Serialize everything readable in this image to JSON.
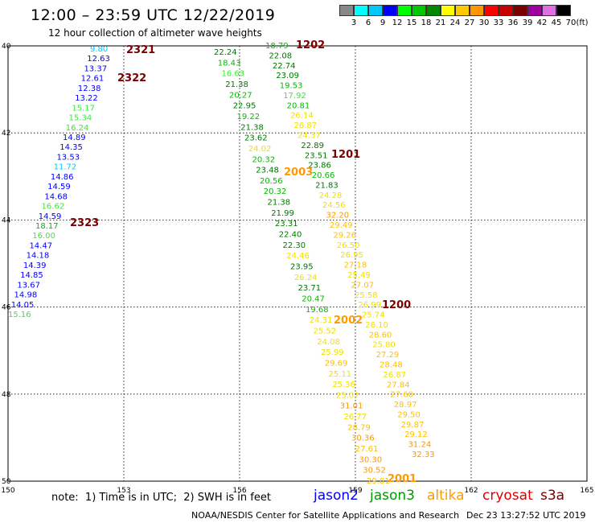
{
  "header": {
    "title": "12:00 – 23:59 UTC 12/22/2019",
    "subtitle": "12 hour collection of altimeter wave heights"
  },
  "legend": {
    "unit": "(ft)",
    "bins": [
      {
        "label": "3",
        "color": "#888888"
      },
      {
        "label": "6",
        "color": "#00ffff"
      },
      {
        "label": "9",
        "color": "#00c8ff"
      },
      {
        "label": "12",
        "color": "#0000ff"
      },
      {
        "label": "15",
        "color": "#00ff00"
      },
      {
        "label": "18",
        "color": "#00c800"
      },
      {
        "label": "21",
        "color": "#008800"
      },
      {
        "label": "24",
        "color": "#ffff00"
      },
      {
        "label": "27",
        "color": "#ffc800"
      },
      {
        "label": "30",
        "color": "#ff9600"
      },
      {
        "label": "33",
        "color": "#ff0000"
      },
      {
        "label": "36",
        "color": "#c80000"
      },
      {
        "label": "39",
        "color": "#7a0000"
      },
      {
        "label": "42",
        "color": "#a000a0"
      },
      {
        "label": "45",
        "color": "#e070e0"
      },
      {
        "label": "70",
        "color": "#000000"
      }
    ]
  },
  "map": {
    "lon_ticks": [
      "150",
      "153",
      "156",
      "159",
      "162",
      "165"
    ],
    "lat_ticks": [
      "40",
      "42",
      "44",
      "46",
      "48",
      "50"
    ],
    "lon_range": [
      150,
      165
    ],
    "lat_range": [
      40,
      50
    ]
  },
  "tracks": [
    {
      "time": "2321",
      "points": [
        "9.80",
        "12.63",
        "13.37",
        "12.61",
        "12.38",
        "13.22",
        "15.17",
        "15.34",
        "16.24",
        "14.89",
        "14.35",
        "13.53",
        "11.72",
        "14.86",
        "14.59",
        "14.68",
        "16.62",
        "14.59",
        "18.17",
        "16.00",
        "14.47",
        "14.18",
        "14.39",
        "14.85",
        "13.67",
        "14.98",
        "14.05",
        "15.16"
      ]
    },
    {
      "time": "2322"
    },
    {
      "time": "2323"
    },
    {
      "time": "1202",
      "points": [
        "18.79",
        "22.08",
        "22.74",
        "23.09",
        "19.53",
        "17.92",
        "20.81",
        "26.14",
        "26.87",
        "24.37",
        "22.89",
        "23.51",
        "23.86",
        "20.66",
        "21.83",
        "24.28",
        "24.56",
        "32.20",
        "29.49",
        "29.26",
        "26.50",
        "26.95",
        "27.18",
        "25.49",
        "27.07",
        "25.58",
        "26.99",
        "25.74",
        "26.10",
        "28.60",
        "25.80",
        "27.29",
        "28.48",
        "26.87",
        "27.84",
        "27.60",
        "28.97",
        "29.50",
        "29.87",
        "29.12",
        "31.24",
        "32.33"
      ]
    },
    {
      "time": "1201"
    },
    {
      "time": "1200"
    },
    {
      "time": "2003",
      "points": [
        "22.24",
        "18.43",
        "16.63",
        "21.38",
        "20.27",
        "22.95",
        "19.22",
        "21.38",
        "23.62",
        "24.02",
        "20.32",
        "23.48",
        "20.56",
        "20.32",
        "21.38",
        "21.99",
        "23.31",
        "22.40",
        "22.30",
        "24.46",
        "23.95",
        "26.24",
        "23.71",
        "20.47",
        "19.68",
        "24.31",
        "25.52",
        "24.08",
        "25.99",
        "29.69",
        "25.11",
        "25.36",
        "25.07",
        "31.01",
        "26.77",
        "28.79",
        "30.36",
        "27.61",
        "30.30",
        "30.52",
        "29.81"
      ]
    },
    {
      "time": "2002"
    },
    {
      "time": "2001"
    }
  ],
  "footer": {
    "note": "note:  1) Time is in UTC;  2) SWH is in feet",
    "satellites": [
      {
        "name": "jason2",
        "color": "#0000ff"
      },
      {
        "name": "jason3",
        "color": "#009900"
      },
      {
        "name": "altika",
        "color": "#ff9900"
      },
      {
        "name": "cryosat",
        "color": "#dd0000"
      },
      {
        "name": "s3a",
        "color": "#7a0000"
      }
    ],
    "credit": "NOAA/NESDIS Center for Satellite Applications and Research",
    "timestamp": "Dec 23 13:27:52 UTC 2019"
  }
}
